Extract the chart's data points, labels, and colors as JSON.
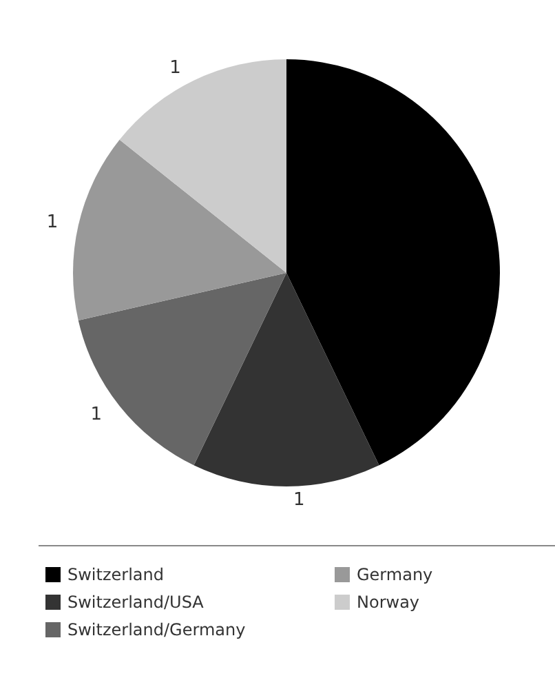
{
  "chart_data": {
    "type": "pie",
    "categories": [
      "Switzerland",
      "Switzerland/USA",
      "Switzerland/Germany",
      "Germany",
      "Norway"
    ],
    "values": [
      3,
      1,
      1,
      1,
      1
    ],
    "colors": [
      "#000000",
      "#333333",
      "#666666",
      "#999999",
      "#cccccc"
    ],
    "value_labels": [
      null,
      "1",
      "1",
      "1",
      "1"
    ],
    "legend": "bottom"
  }
}
